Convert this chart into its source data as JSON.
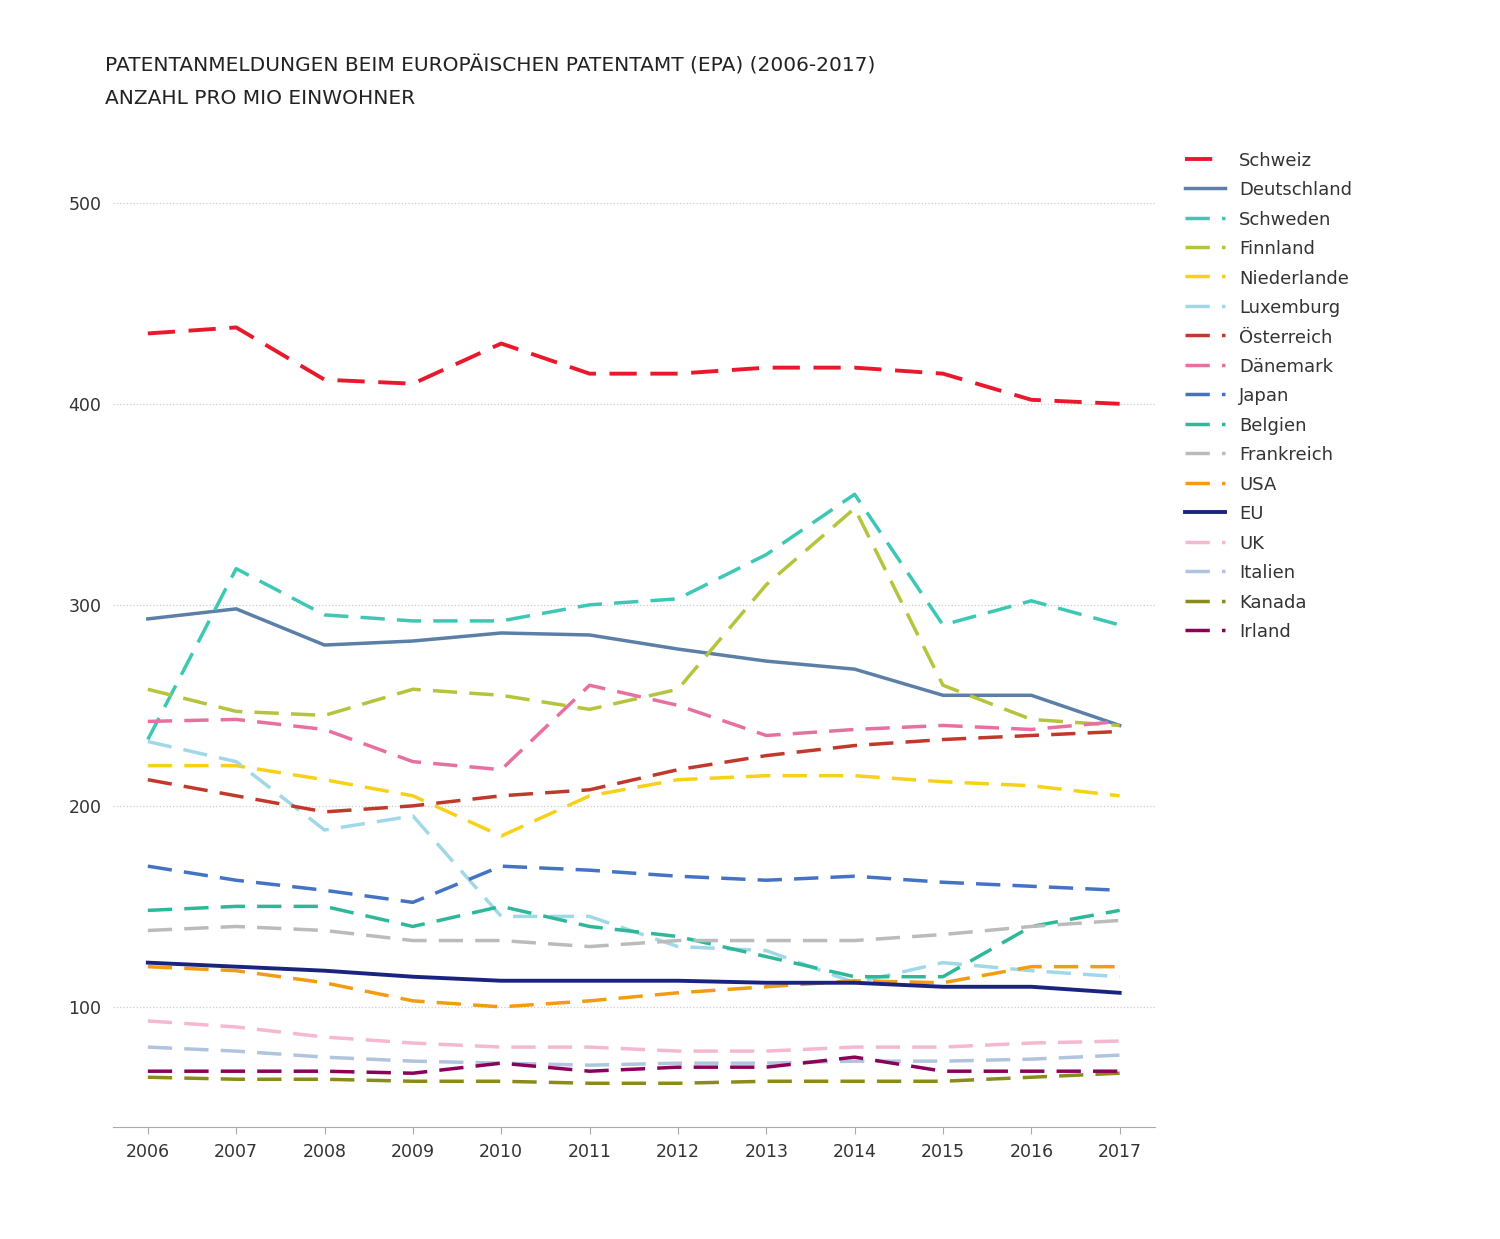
{
  "title_line1": "PATENTANMELDUNGEN BEIM EUROPÄISCHEN PATENTAMT (EPA) (2006-2017)",
  "title_line2": "ANZAHL PRO MIO EINWOHNER",
  "years": [
    2006,
    2007,
    2008,
    2009,
    2010,
    2011,
    2012,
    2013,
    2014,
    2015,
    2016,
    2017
  ],
  "series": [
    {
      "name": "Schweiz",
      "color": "#e8192c",
      "linestyle": "dashed",
      "linewidth": 2.8,
      "values": [
        435,
        438,
        412,
        410,
        430,
        415,
        415,
        418,
        418,
        415,
        402,
        400
      ]
    },
    {
      "name": "Deutschland",
      "color": "#5b7fa6",
      "linestyle": "solid",
      "linewidth": 2.5,
      "values": [
        293,
        298,
        280,
        282,
        286,
        285,
        278,
        272,
        268,
        255,
        255,
        240
      ]
    },
    {
      "name": "Schweden",
      "color": "#3cc8b4",
      "linestyle": "dashed",
      "linewidth": 2.5,
      "values": [
        233,
        318,
        295,
        292,
        292,
        300,
        303,
        325,
        355,
        290,
        302,
        290
      ]
    },
    {
      "name": "Finnland",
      "color": "#b5c43a",
      "linestyle": "dashed",
      "linewidth": 2.5,
      "values": [
        258,
        247,
        245,
        258,
        255,
        248,
        258,
        310,
        348,
        260,
        243,
        240
      ]
    },
    {
      "name": "Niederlande",
      "color": "#f7d117",
      "linestyle": "dashed",
      "linewidth": 2.5,
      "values": [
        220,
        220,
        213,
        205,
        185,
        205,
        213,
        215,
        215,
        212,
        210,
        205
      ]
    },
    {
      "name": "Luxemburg",
      "color": "#a0d8e8",
      "linestyle": "dashed",
      "linewidth": 2.5,
      "values": [
        232,
        222,
        188,
        195,
        145,
        145,
        130,
        128,
        112,
        122,
        118,
        115
      ]
    },
    {
      "name": "Österreich",
      "color": "#c0392b",
      "linestyle": "dashed",
      "linewidth": 2.5,
      "values": [
        213,
        205,
        197,
        200,
        205,
        208,
        218,
        225,
        230,
        233,
        235,
        237
      ]
    },
    {
      "name": "Dänemark",
      "color": "#e870a0",
      "linestyle": "dashed",
      "linewidth": 2.5,
      "values": [
        242,
        243,
        238,
        222,
        218,
        260,
        250,
        235,
        238,
        240,
        238,
        242
      ]
    },
    {
      "name": "Japan",
      "color": "#4472c4",
      "linestyle": "dashed",
      "linewidth": 2.5,
      "values": [
        170,
        163,
        158,
        152,
        170,
        168,
        165,
        163,
        165,
        162,
        160,
        158
      ]
    },
    {
      "name": "Belgien",
      "color": "#2db89a",
      "linestyle": "dashed",
      "linewidth": 2.5,
      "values": [
        148,
        150,
        150,
        140,
        150,
        140,
        135,
        125,
        115,
        115,
        140,
        148
      ]
    },
    {
      "name": "Frankreich",
      "color": "#bbbbbb",
      "linestyle": "dashed",
      "linewidth": 2.5,
      "values": [
        138,
        140,
        138,
        133,
        133,
        130,
        133,
        133,
        133,
        136,
        140,
        143
      ]
    },
    {
      "name": "USA",
      "color": "#f39c12",
      "linestyle": "dashed",
      "linewidth": 2.5,
      "values": [
        120,
        118,
        112,
        103,
        100,
        103,
        107,
        110,
        113,
        112,
        120,
        120
      ]
    },
    {
      "name": "EU",
      "color": "#1a237e",
      "linestyle": "solid",
      "linewidth": 2.8,
      "values": [
        122,
        120,
        118,
        115,
        113,
        113,
        113,
        112,
        112,
        110,
        110,
        107
      ]
    },
    {
      "name": "UK",
      "color": "#f5b8d0",
      "linestyle": "dashed",
      "linewidth": 2.5,
      "values": [
        93,
        90,
        85,
        82,
        80,
        80,
        78,
        78,
        80,
        80,
        82,
        83
      ]
    },
    {
      "name": "Italien",
      "color": "#b0c4de",
      "linestyle": "dashed",
      "linewidth": 2.5,
      "values": [
        80,
        78,
        75,
        73,
        72,
        71,
        72,
        72,
        73,
        73,
        74,
        76
      ]
    },
    {
      "name": "Kanada",
      "color": "#8b8b1a",
      "linestyle": "dashed",
      "linewidth": 2.5,
      "values": [
        65,
        64,
        64,
        63,
        63,
        62,
        62,
        63,
        63,
        63,
        65,
        67
      ]
    },
    {
      "name": "Irland",
      "color": "#8B0058",
      "linestyle": "dashed",
      "linewidth": 2.5,
      "values": [
        68,
        68,
        68,
        67,
        72,
        68,
        70,
        70,
        75,
        68,
        68,
        68
      ]
    }
  ],
  "ylim": [
    40,
    530
  ],
  "yticks": [
    100,
    200,
    300,
    400,
    500
  ],
  "background_color": "#ffffff",
  "grid_color": "#cccccc",
  "title_fontsize": 14.5,
  "tick_fontsize": 12.5
}
